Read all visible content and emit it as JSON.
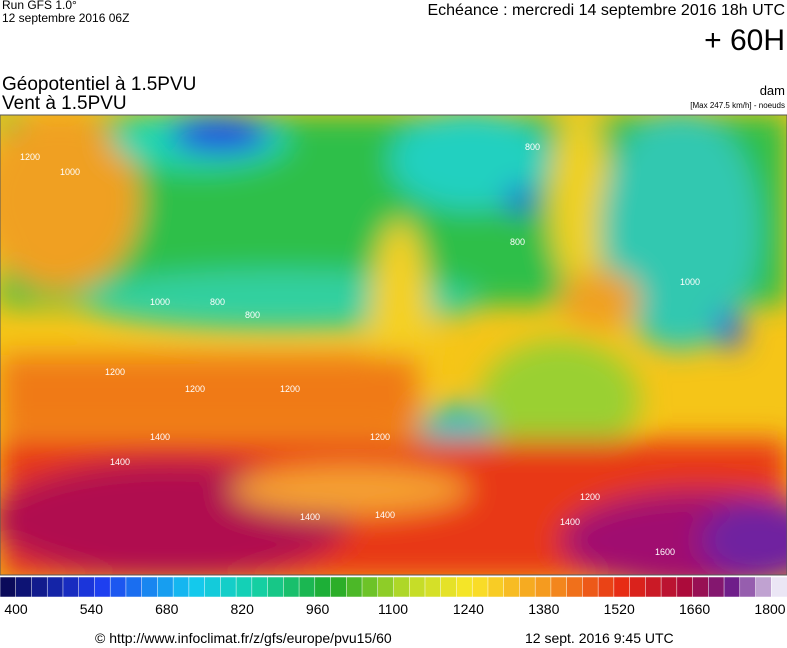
{
  "header": {
    "run": "Run GFS 1.0°",
    "run_date": "12 septembre 2016 06Z",
    "echeance": "Echéance : mercredi 14 septembre 2016 18h UTC",
    "lead": "+ 60H",
    "field1": "Géopotentiel à 1.5PVU",
    "field2": "Vent à 1.5PVU",
    "unit": "dam",
    "max_wind": "[Max 247.5 km/h] - noeuds"
  },
  "map": {
    "contour_labels": [
      "1200",
      "1000",
      "800",
      "800",
      "1000",
      "1200",
      "1200",
      "1200",
      "1400",
      "1400",
      "1400",
      "1400",
      "1200",
      "1600",
      "1200",
      "1400",
      "800",
      "800",
      "1000"
    ]
  },
  "colorbar": {
    "ticks": [
      400,
      540,
      680,
      820,
      960,
      1100,
      1240,
      1380,
      1520,
      1660,
      1800
    ]
  },
  "footer": {
    "source": "© http://www.infoclimat.fr/z/gfs/europe/pvu15/60",
    "generated": "12 sept. 2016  9:45 UTC"
  }
}
